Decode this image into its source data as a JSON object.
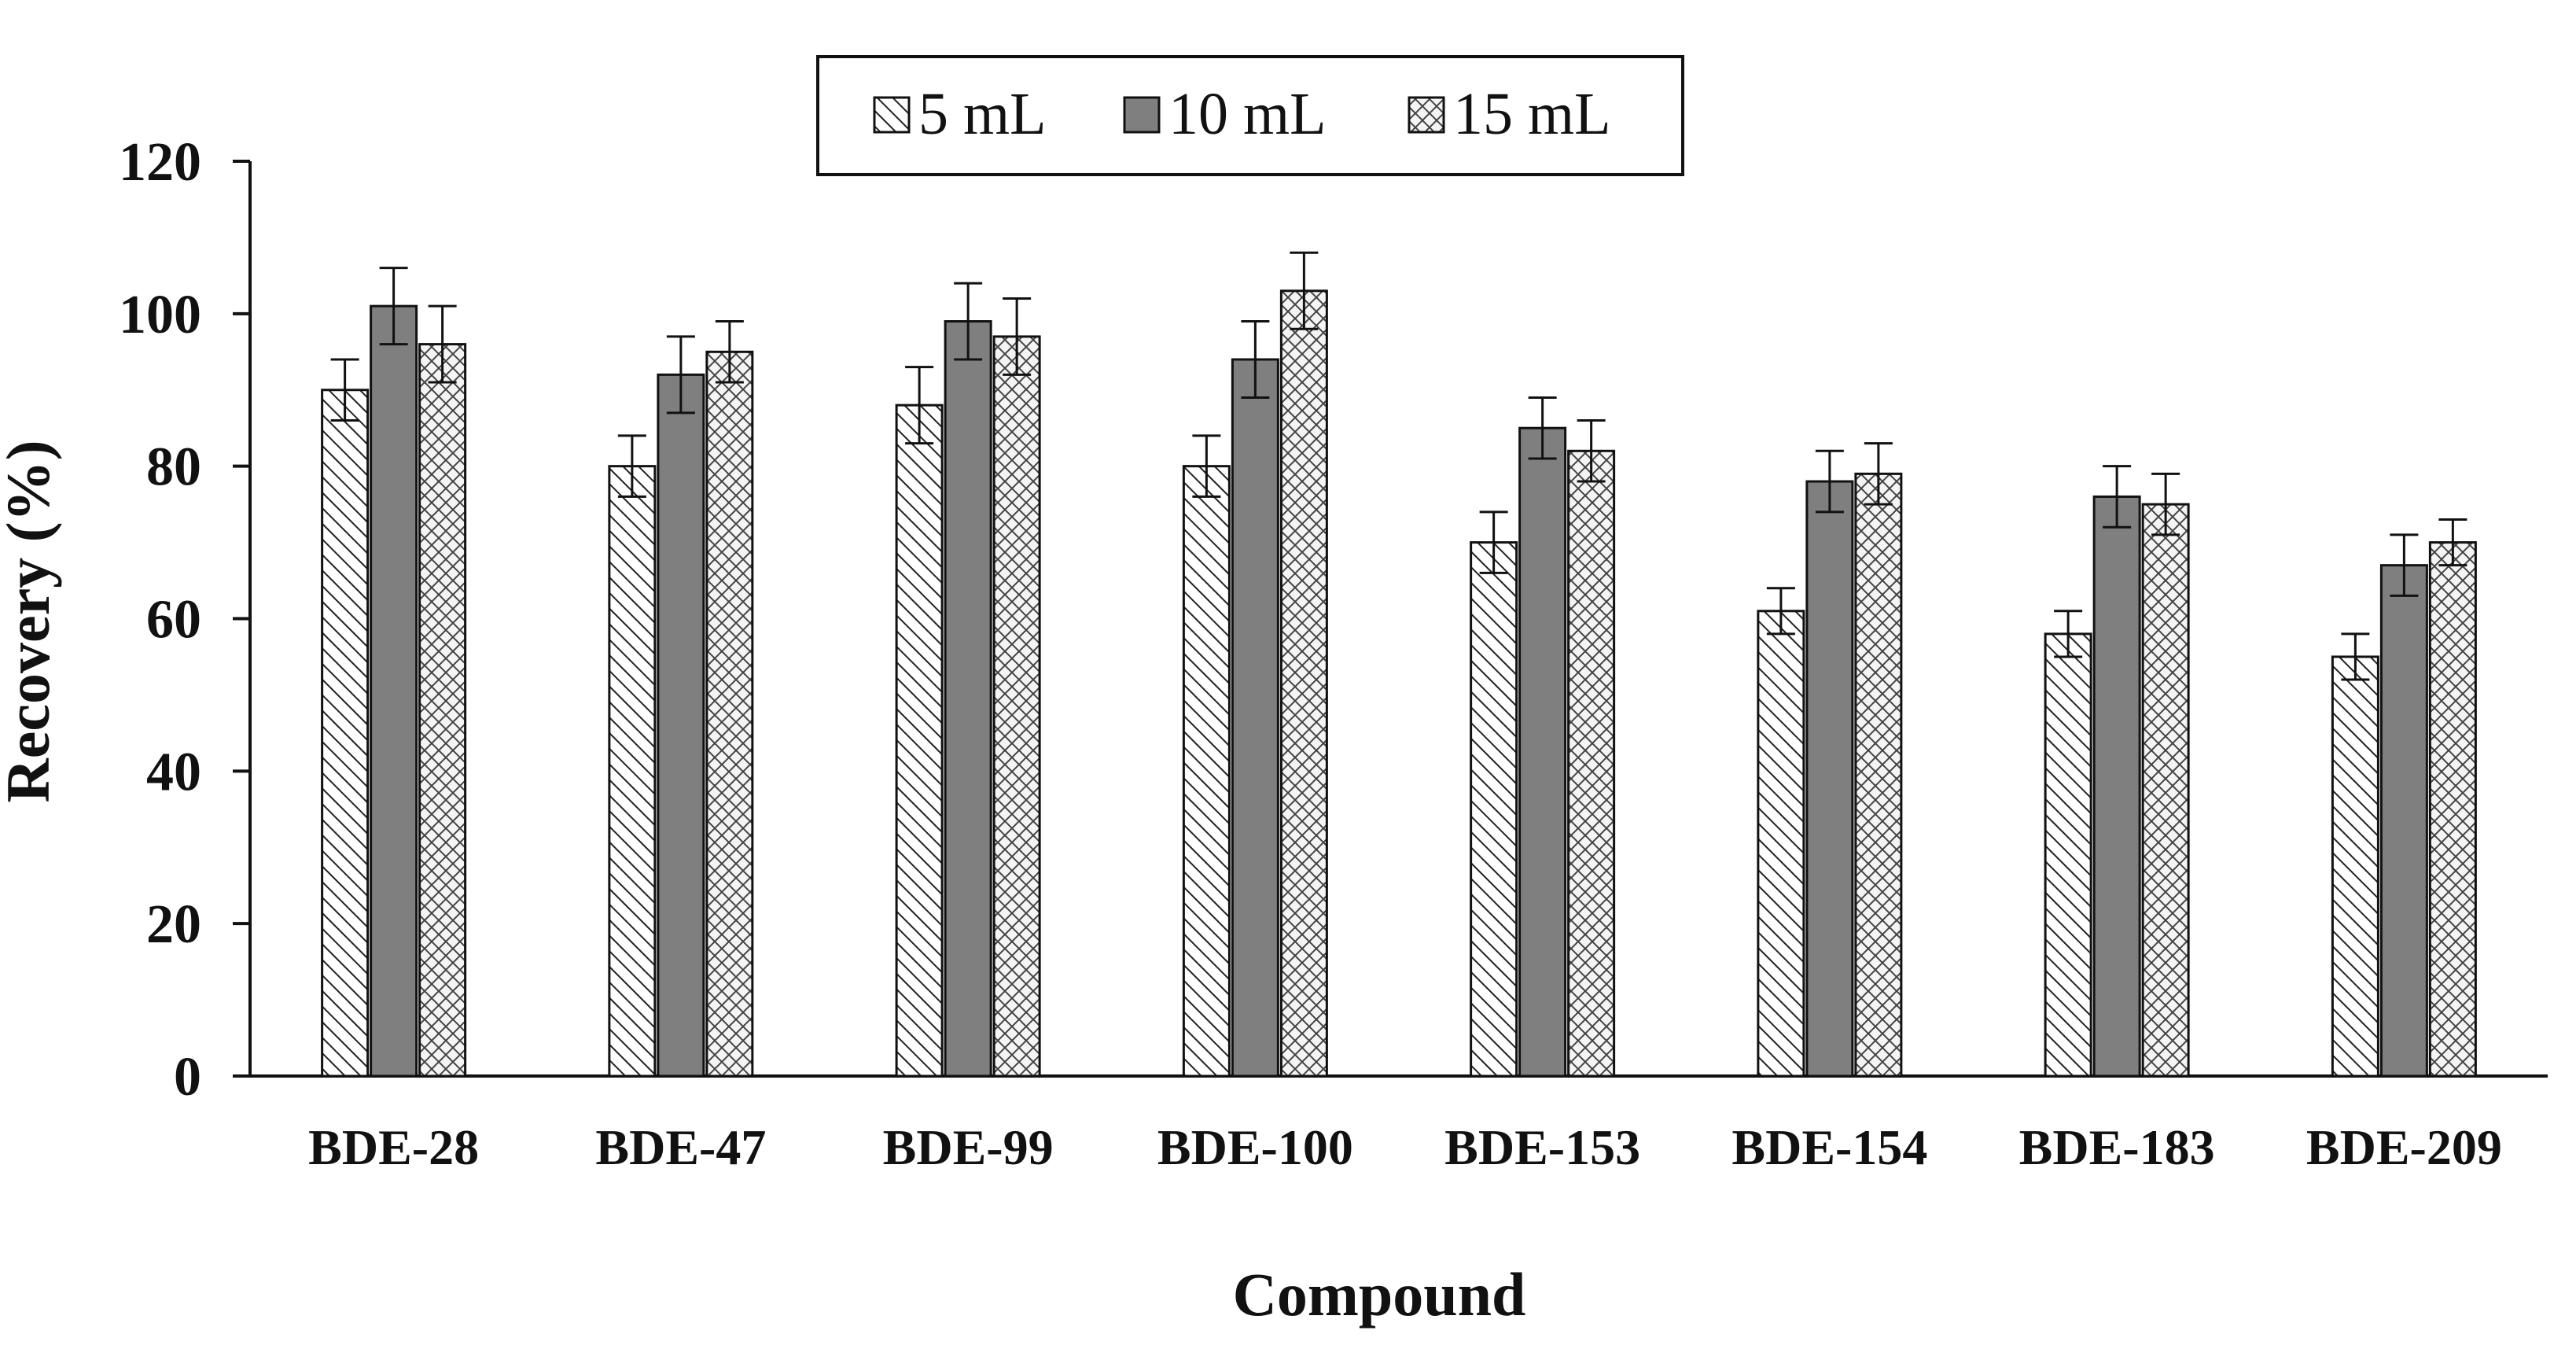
{
  "chart_data": {
    "type": "bar",
    "title": "",
    "xlabel": "Compound",
    "ylabel": "Recovery (%)",
    "ylim": [
      0,
      120
    ],
    "yticks": [
      0,
      20,
      40,
      60,
      80,
      100,
      120
    ],
    "grid": false,
    "legend_position": "top-center",
    "categories": [
      "BDE-28",
      "BDE-47",
      "BDE-99",
      "BDE-100",
      "BDE-153",
      "BDE-154",
      "BDE-183",
      "BDE-209"
    ],
    "series": [
      {
        "name": "5 mL",
        "pattern": "diagonal-hatch",
        "color": "#ffffff",
        "values": [
          90,
          80,
          88,
          80,
          70,
          61,
          58,
          55
        ],
        "errors": [
          4,
          4,
          5,
          4,
          4,
          3,
          3,
          3
        ]
      },
      {
        "name": "10 mL",
        "pattern": "solid",
        "color": "#7f7f7f",
        "values": [
          101,
          92,
          99,
          94,
          85,
          78,
          76,
          67
        ],
        "errors": [
          5,
          5,
          5,
          5,
          4,
          4,
          4,
          4
        ]
      },
      {
        "name": "15 mL",
        "pattern": "cross-hatch",
        "color": "#ffffff",
        "values": [
          96,
          95,
          97,
          103,
          82,
          79,
          75,
          70
        ],
        "errors": [
          5,
          4,
          5,
          5,
          4,
          4,
          4,
          3
        ]
      }
    ]
  }
}
